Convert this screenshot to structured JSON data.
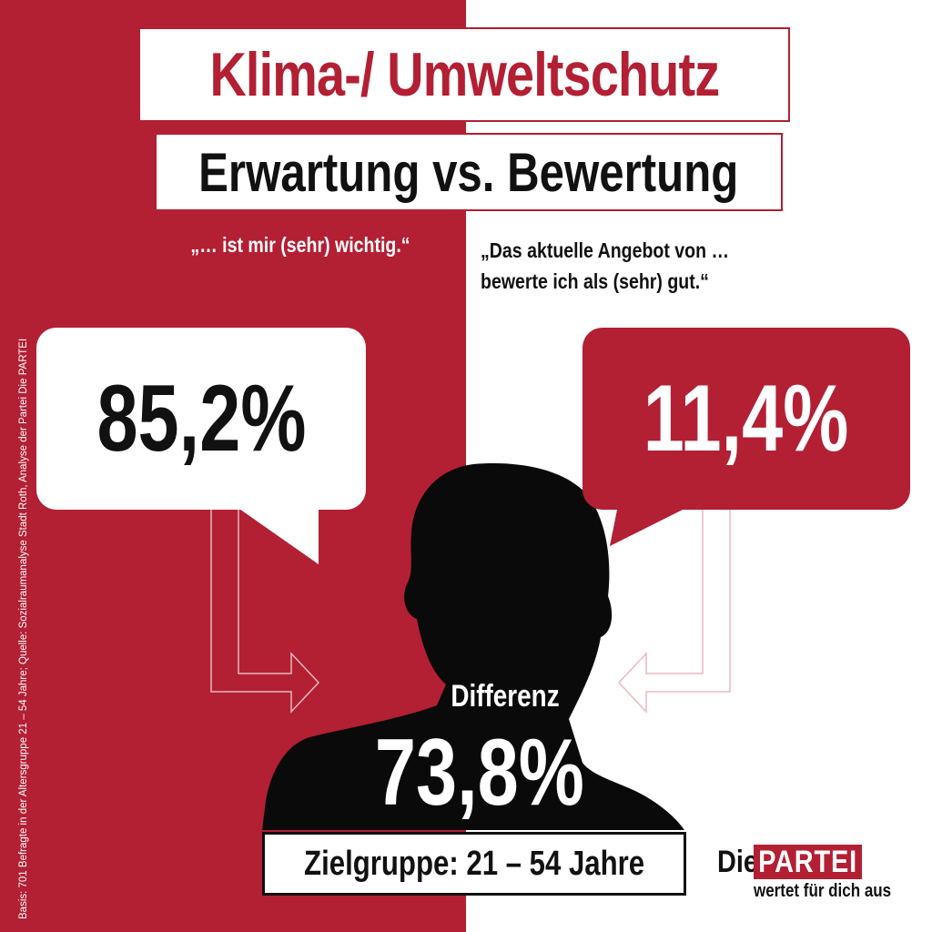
{
  "title": "Klima-/ Umweltschutz",
  "subtitle": "Erwartung vs. Bewertung",
  "left": {
    "quote": "„… ist mir (sehr) wichtig.“",
    "value": "85,2%"
  },
  "right": {
    "quote_line1": "„Das aktuelle Angebot von …",
    "quote_line2": "bewerte ich als (sehr) gut.“",
    "value": "11,4%"
  },
  "difference": {
    "label": "Differenz",
    "value": "73,8%"
  },
  "target_group": "Zielgruppe: 21 – 54 Jahre",
  "source_note": "Basis: 701 Befragte in der Altersgruppe 21 – 54 Jahre; Quelle: Sozialraumanalyse Stadt Roth, Analyse der Partei Die PARTEI",
  "logo": {
    "die": "Die",
    "partei": "PARTEI",
    "tagline": "wertet für dich aus"
  },
  "colors": {
    "brand_red": "#b31f33",
    "white": "#ffffff",
    "black": "#111111"
  },
  "icons": [
    "person-silhouette-icon",
    "arrow-right-icon",
    "arrow-left-icon"
  ]
}
